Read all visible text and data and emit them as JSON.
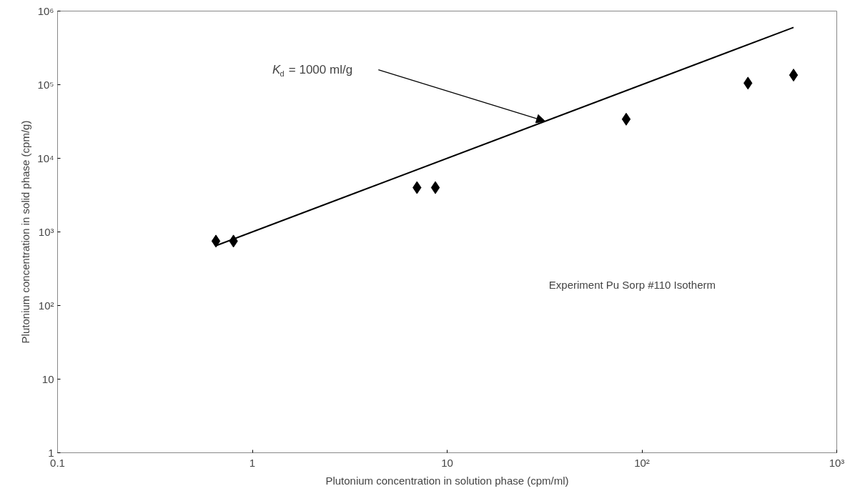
{
  "chart_data": {
    "type": "scatter",
    "xlabel": "Plutonium concentration in solution phase (cpm/ml)",
    "ylabel": "Plutonium concentration in solid phase (cpm/g)",
    "log": "xy",
    "grid": false,
    "marker": "diamond",
    "xlim": [
      0.1,
      1000
    ],
    "ylim": [
      1,
      1000000
    ],
    "xticks": [
      0.1,
      1,
      10,
      {
        "value": 100,
        "label": "10²"
      },
      {
        "value": 1000,
        "label": "10³"
      }
    ],
    "yticks": [
      1,
      10,
      {
        "value": 100,
        "label": "10²"
      },
      {
        "value": 1000,
        "label": "10³"
      },
      {
        "value": 10000,
        "label": "10⁴"
      },
      {
        "value": 100000,
        "label": "10⁵"
      },
      {
        "value": 1000000,
        "label": "10⁶"
      }
    ],
    "series": [
      {
        "color": "#000000",
        "x": [
          0.65,
          0.8,
          7,
          8.7,
          83,
          350,
          600
        ],
        "values": [
          750,
          750,
          4000,
          4000,
          34000,
          105000,
          135000
        ]
      },
      {
        "type": "line",
        "color": "#000000",
        "marker": "none",
        "line_style": "solid",
        "x": [
          0.65,
          600
        ],
        "values": [
          650,
          600000
        ]
      }
    ],
    "annotations": [
      "K$_{d}$ = 1000 ml/g",
      "Experiment Pu Sorp #110 Isotherm"
    ]
  }
}
